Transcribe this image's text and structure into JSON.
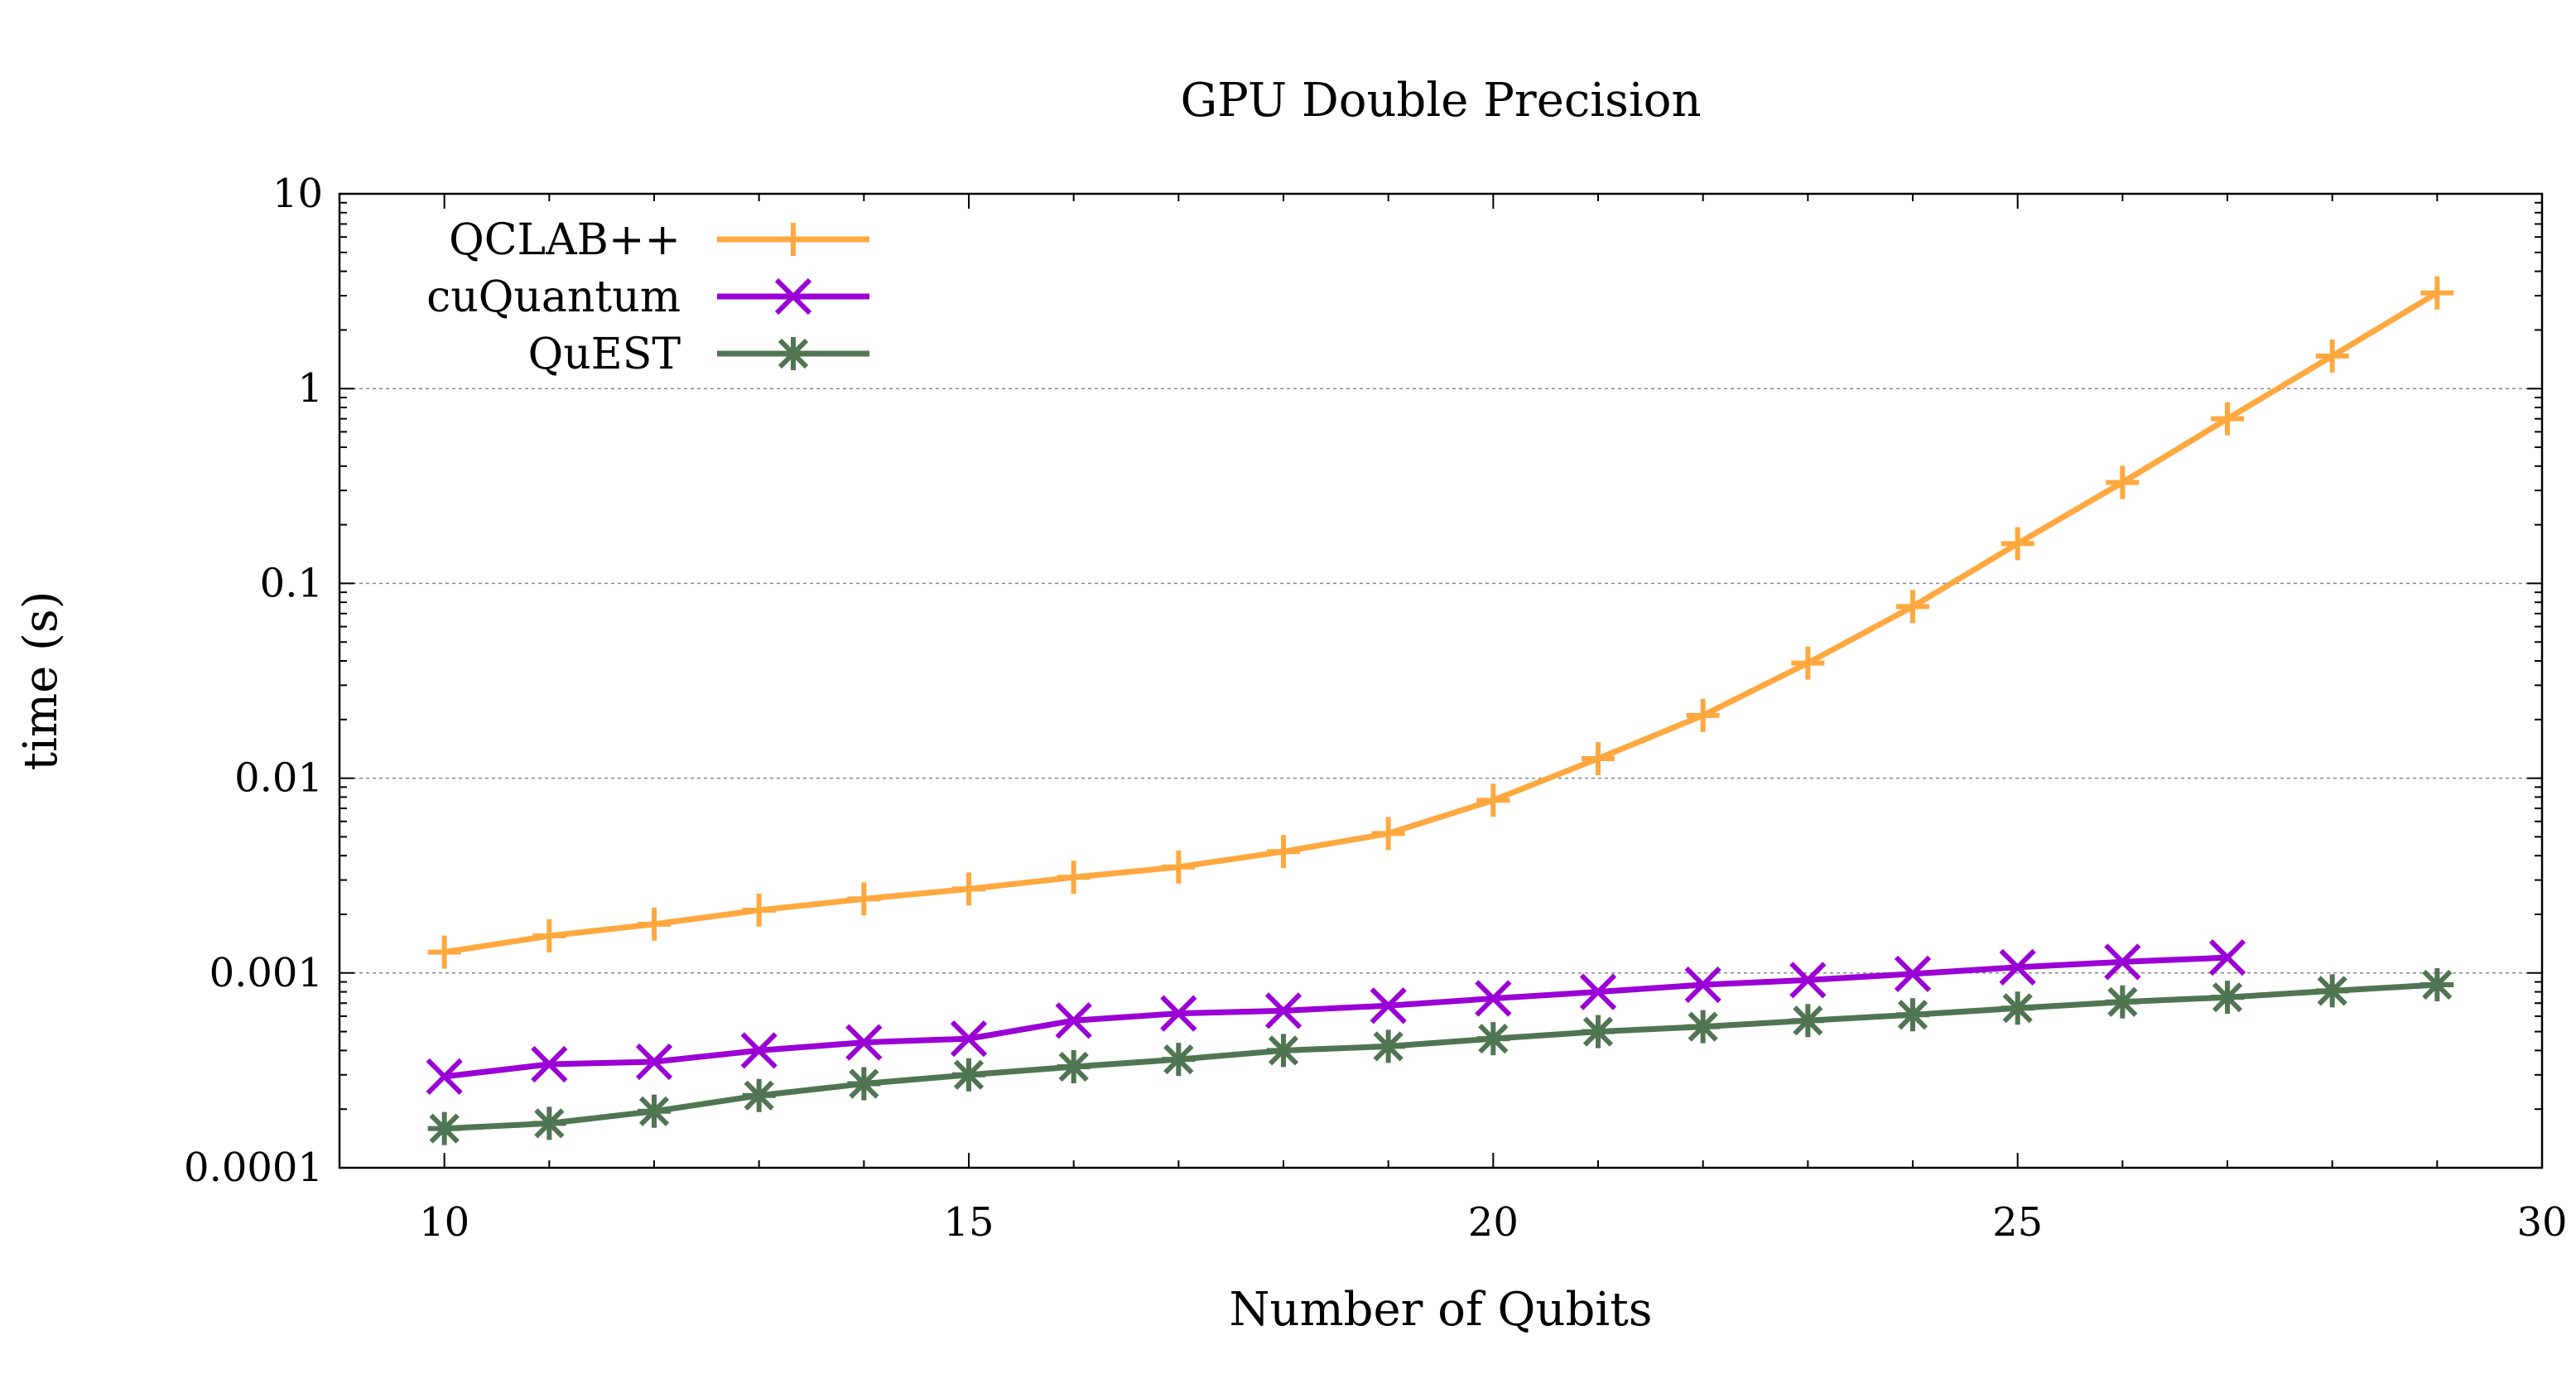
{
  "chart_data": {
    "type": "line",
    "title": "GPU Double Precision",
    "xlabel": "Number of Qubits",
    "ylabel": "time (s)",
    "xlim": [
      9,
      30
    ],
    "ylim": [
      0.0001,
      10
    ],
    "yscale": "log",
    "grid": "horizontal dashed at decades",
    "legend_position": "top-left",
    "x_ticks": [
      10,
      15,
      20,
      25,
      30
    ],
    "x_tick_labels": [
      "10",
      "15",
      "20",
      "25",
      "30"
    ],
    "y_ticks": [
      0.0001,
      0.001,
      0.01,
      0.1,
      1,
      10
    ],
    "y_tick_labels": [
      "0.0001",
      "0.001",
      "0.01",
      "0.1",
      "1",
      "10"
    ],
    "series": [
      {
        "name": "QCLAB++",
        "color": "#ffa83f",
        "marker": "plus",
        "x": [
          10,
          11,
          12,
          13,
          14,
          15,
          16,
          17,
          18,
          19,
          20,
          21,
          22,
          23,
          24,
          25,
          26,
          27,
          28,
          29
        ],
        "values": [
          0.00128,
          0.00155,
          0.00178,
          0.0021,
          0.0024,
          0.0027,
          0.0031,
          0.0035,
          0.0042,
          0.0052,
          0.0077,
          0.0126,
          0.021,
          0.039,
          0.076,
          0.16,
          0.33,
          0.7,
          1.47,
          3.1
        ]
      },
      {
        "name": "cuQuantum",
        "color": "#9a00d6",
        "marker": "cross",
        "x": [
          10,
          11,
          12,
          13,
          14,
          15,
          16,
          17,
          18,
          19,
          20,
          21,
          22,
          23,
          24,
          25,
          26,
          27
        ],
        "values": [
          0.000294,
          0.00034,
          0.00035,
          0.0004,
          0.00044,
          0.00046,
          0.00057,
          0.00062,
          0.00064,
          0.00068,
          0.00074,
          0.0008,
          0.00087,
          0.00092,
          0.00099,
          0.00107,
          0.00114,
          0.0012
        ]
      },
      {
        "name": "QuEST",
        "color": "#507552",
        "marker": "star",
        "x": [
          10,
          11,
          12,
          13,
          14,
          15,
          16,
          17,
          18,
          19,
          20,
          21,
          22,
          23,
          24,
          25,
          26,
          27,
          28,
          29
        ],
        "values": [
          0.000159,
          0.000169,
          0.000195,
          0.000235,
          0.00027,
          0.0003,
          0.00033,
          0.00036,
          0.0004,
          0.00042,
          0.00046,
          0.0005,
          0.00053,
          0.00057,
          0.00061,
          0.00066,
          0.00071,
          0.00075,
          0.00081,
          0.00087
        ]
      }
    ]
  }
}
